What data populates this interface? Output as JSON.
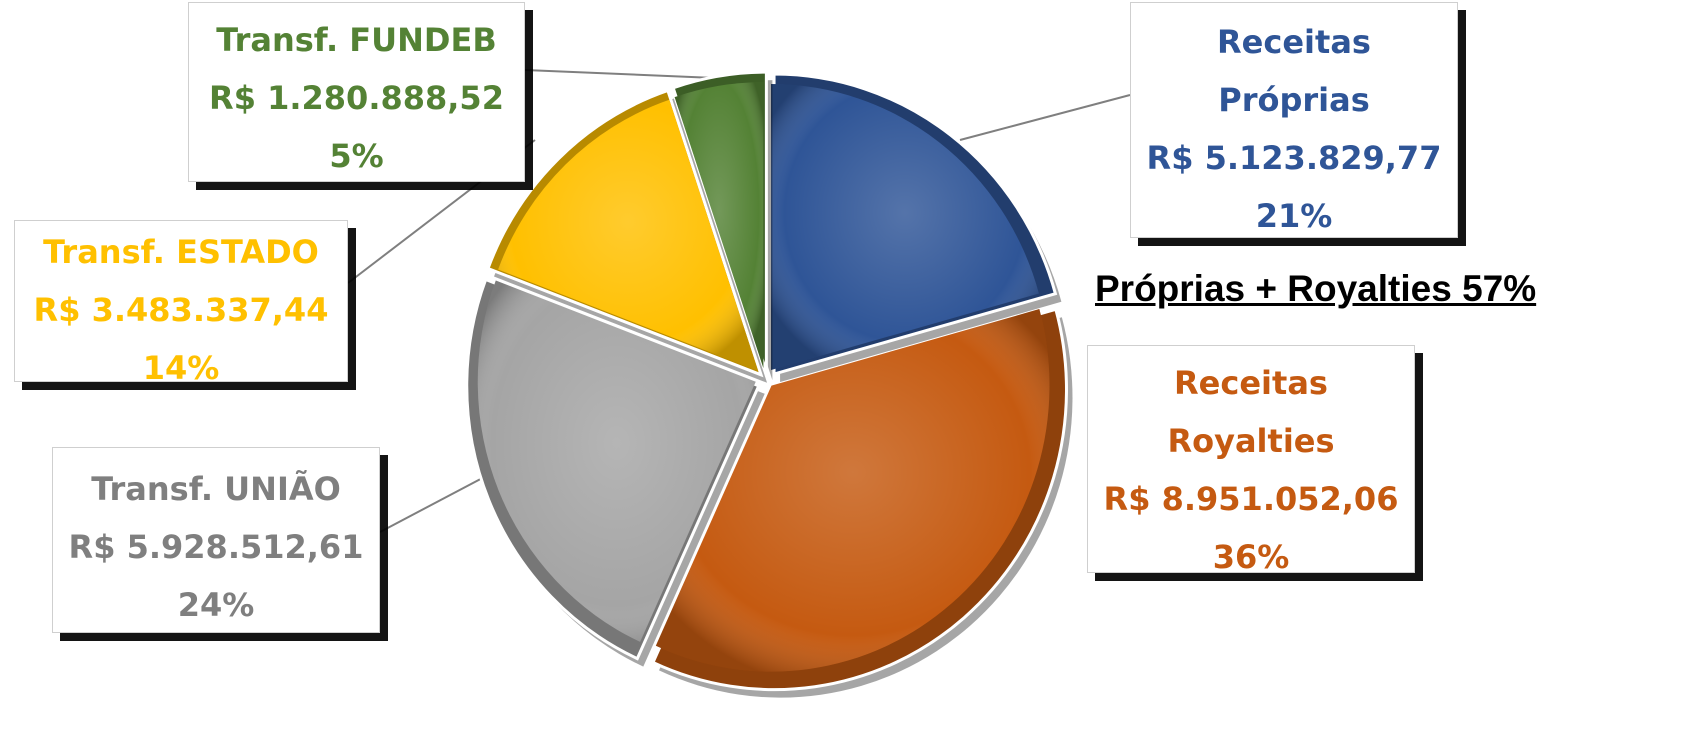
{
  "chart_data": {
    "type": "pie",
    "title": "",
    "annotation": "Próprias + Royalties 57%",
    "slices": [
      {
        "key": "proprias",
        "lines": [
          "Receitas",
          "Próprias",
          "R$ 5.123.829,77",
          "21%"
        ],
        "value": 5123829.77,
        "percent": 21,
        "color": "#2f5597"
      },
      {
        "key": "royalties",
        "lines": [
          "Receitas",
          "Royalties",
          "R$ 8.951.052,06",
          "36%"
        ],
        "value": 8951052.06,
        "percent": 36,
        "color": "#c55a11"
      },
      {
        "key": "uniao",
        "lines": [
          "Transf. UNIÃO",
          "R$ 5.928.512,61",
          "24%"
        ],
        "value": 5928512.61,
        "percent": 24,
        "color": "#a5a5a5"
      },
      {
        "key": "estado",
        "lines": [
          "Transf. ESTADO",
          "R$ 3.483.337,44",
          "14%"
        ],
        "value": 3483337.44,
        "percent": 14,
        "color": "#ffc000"
      },
      {
        "key": "fundeb",
        "lines": [
          "Transf. FUNDEB",
          "R$ 1.280.888,52",
          "5%"
        ],
        "value": 1280888.52,
        "percent": 5,
        "color": "#548235"
      }
    ],
    "label_colors": {
      "proprias": "#2f5597",
      "royalties": "#c55a11",
      "uniao": "#7f7f7f",
      "estado": "#ffc000",
      "fundeb": "#548235"
    },
    "legend": "none",
    "explode": "all-slices"
  }
}
